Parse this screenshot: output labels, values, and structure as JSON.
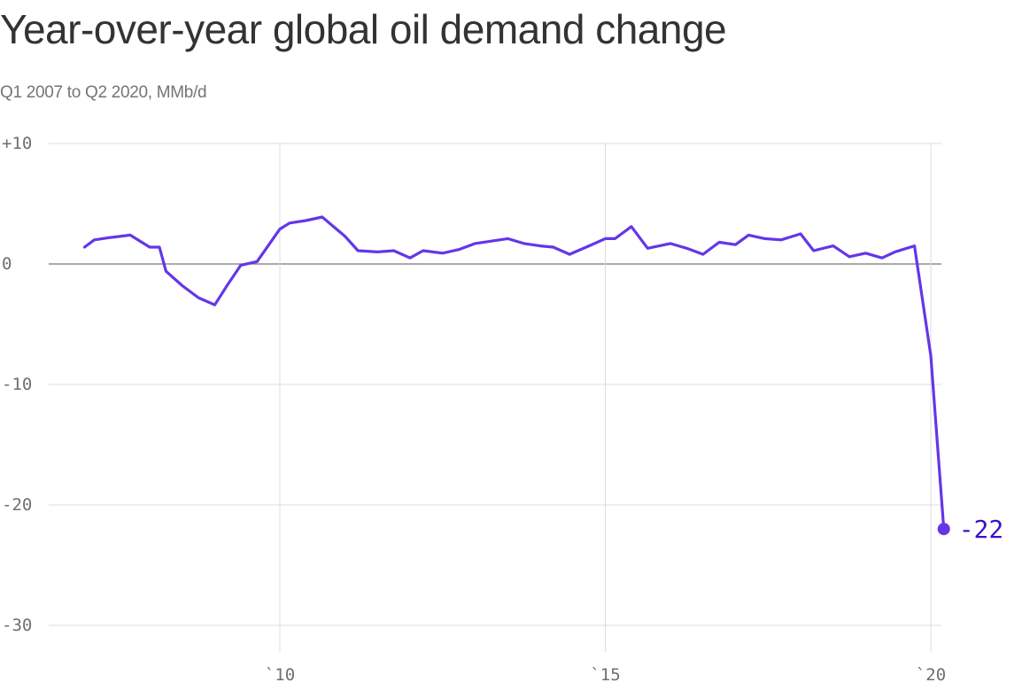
{
  "title": "Year-over-year global oil demand change",
  "subtitle": "Q1 2007 to Q2 2020, MMb/d",
  "colors": {
    "line": "#6436e8",
    "end_label": "#3a11cc",
    "grid": "#dcdcdc",
    "zero_line": "#777777",
    "axis_text": "#6f6f6f"
  },
  "chart_data": {
    "type": "line",
    "title": "Year-over-year global oil demand change",
    "subtitle": "Q1 2007 to Q2 2020, MMb/d",
    "xlabel": "",
    "ylabel": "",
    "xlim": [
      2007.0,
      2020.2
    ],
    "ylim": [
      -30,
      10
    ],
    "y_ticks": [
      10,
      0,
      -10,
      -20,
      -30
    ],
    "y_tick_labels": [
      "+10",
      "0",
      "-10",
      "-20",
      "-30"
    ],
    "x_ticks": [
      2010,
      2015,
      2020
    ],
    "x_tick_labels": [
      "`10",
      "`15",
      "`20"
    ],
    "grid": true,
    "end_label": "-22",
    "series": [
      {
        "x": [
          2007.0,
          2007.15,
          2007.4,
          2007.7,
          2008.0,
          2008.15,
          2008.25,
          2008.5,
          2008.75,
          2009.0,
          2009.2,
          2009.4,
          2009.65,
          2010.0,
          2010.15,
          2010.4,
          2010.65,
          2011.0,
          2011.2,
          2011.5,
          2011.75,
          2012.0,
          2012.2,
          2012.5,
          2012.75,
          2013.0,
          2013.25,
          2013.5,
          2013.75,
          2014.0,
          2014.2,
          2014.45,
          2014.75,
          2015.0,
          2015.15,
          2015.4,
          2015.65,
          2016.0,
          2016.25,
          2016.5,
          2016.75,
          2017.0,
          2017.2,
          2017.45,
          2017.7,
          2018.0,
          2018.2,
          2018.5,
          2018.75,
          2019.0,
          2019.25,
          2019.45,
          2019.75,
          2020.0,
          2020.2
        ],
        "y": [
          1.4,
          2.0,
          2.2,
          2.4,
          1.4,
          1.4,
          -0.6,
          -1.8,
          -2.8,
          -3.4,
          -1.7,
          -0.1,
          0.2,
          2.9,
          3.4,
          3.6,
          3.9,
          2.3,
          1.1,
          1.0,
          1.1,
          0.5,
          1.1,
          0.9,
          1.2,
          1.7,
          1.9,
          2.1,
          1.7,
          1.5,
          1.4,
          0.8,
          1.5,
          2.1,
          2.1,
          3.1,
          1.3,
          1.7,
          1.3,
          0.8,
          1.8,
          1.6,
          2.4,
          2.1,
          2.0,
          2.5,
          1.1,
          1.5,
          0.6,
          0.9,
          0.5,
          1.0,
          1.5,
          -7.6,
          -22
        ]
      }
    ]
  }
}
